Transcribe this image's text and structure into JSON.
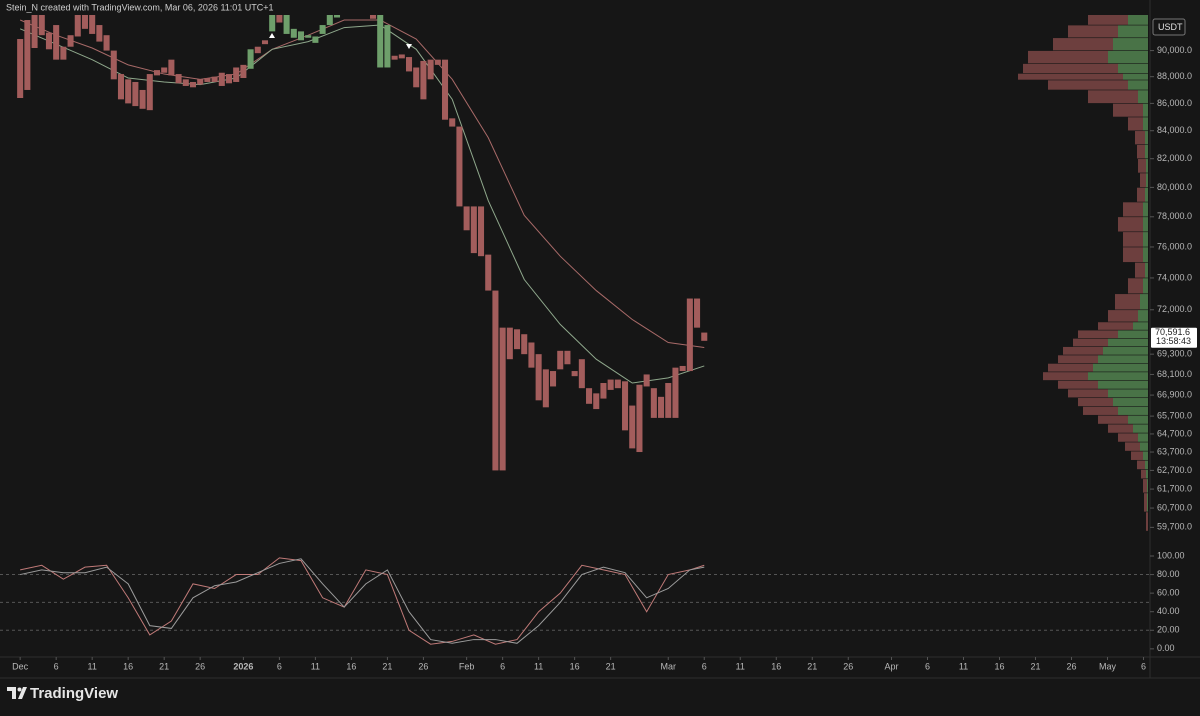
{
  "header": {
    "credit": "Stein_N created with TradingView.com, Mar 06, 2026 11:01 UTC+1",
    "brand": "TradingView"
  },
  "chart_data": [
    {
      "type": "candlestick",
      "currency": "USDT",
      "log_scale": true,
      "xlim": [
        -2.8,
        156.9
      ],
      "ylim": [
        58800,
        92800
      ],
      "xticks": [
        {
          "value": 0,
          "label": "Dec"
        },
        {
          "value": 5,
          "label": "6"
        },
        {
          "value": 10,
          "label": "11"
        },
        {
          "value": 15,
          "label": "16"
        },
        {
          "value": 20,
          "label": "21"
        },
        {
          "value": 25,
          "label": "26"
        },
        {
          "value": 31,
          "label": "2026"
        },
        {
          "value": 36,
          "label": "6"
        },
        {
          "value": 41,
          "label": "11"
        },
        {
          "value": 46,
          "label": "16"
        },
        {
          "value": 51,
          "label": "21"
        },
        {
          "value": 56,
          "label": "26"
        },
        {
          "value": 62,
          "label": "Feb"
        },
        {
          "value": 67,
          "label": "6"
        },
        {
          "value": 72,
          "label": "11"
        },
        {
          "value": 77,
          "label": "16"
        },
        {
          "value": 82,
          "label": "21"
        },
        {
          "value": 90,
          "label": "Mar"
        },
        {
          "value": 95,
          "label": "6"
        },
        {
          "value": 100,
          "label": "11"
        },
        {
          "value": 105,
          "label": "16"
        },
        {
          "value": 110,
          "label": "21"
        },
        {
          "value": 115,
          "label": "26"
        },
        {
          "value": 121,
          "label": "Apr"
        },
        {
          "value": 126,
          "label": "6"
        },
        {
          "value": 131,
          "label": "11"
        },
        {
          "value": 136,
          "label": "16"
        },
        {
          "value": 141,
          "label": "21"
        },
        {
          "value": 146,
          "label": "26"
        },
        {
          "value": 151,
          "label": "May"
        },
        {
          "value": 156,
          "label": "6"
        }
      ],
      "yticks": [
        {
          "value": 90000,
          "label": "90,000.0"
        },
        {
          "value": 88000,
          "label": "88,000.0"
        },
        {
          "value": 86000,
          "label": "86,000.0"
        },
        {
          "value": 84000,
          "label": "84,000.0"
        },
        {
          "value": 82000,
          "label": "82,000.0"
        },
        {
          "value": 80000,
          "label": "80,000.0"
        },
        {
          "value": 78000,
          "label": "78,000.0"
        },
        {
          "value": 76000,
          "label": "76,000.0"
        },
        {
          "value": 74000,
          "label": "74,000.0"
        },
        {
          "value": 72000,
          "label": "72,000.0"
        },
        {
          "value": 69300,
          "label": "69,300.0"
        },
        {
          "value": 68100,
          "label": "68,100.0"
        },
        {
          "value": 66900,
          "label": "66,900.0"
        },
        {
          "value": 65700,
          "label": "65,700.0"
        },
        {
          "value": 64700,
          "label": "64,700.0"
        },
        {
          "value": 63700,
          "label": "63,700.0"
        },
        {
          "value": 62700,
          "label": "62,700.0"
        },
        {
          "value": 61700,
          "label": "61,700.0"
        },
        {
          "value": 60700,
          "label": "60,700.0"
        },
        {
          "value": 59700,
          "label": "59,700.0"
        }
      ],
      "x": [
        0,
        1,
        2,
        3,
        4,
        5,
        6,
        7,
        8,
        9,
        10,
        11,
        12,
        13,
        14,
        15,
        16,
        17,
        18,
        19,
        20,
        21,
        22,
        23,
        24,
        25,
        26,
        27,
        28,
        29,
        30,
        31,
        32,
        33,
        34,
        35,
        36,
        37,
        38,
        39,
        40,
        41,
        42,
        43,
        44,
        45,
        46,
        47,
        48,
        49,
        50,
        51,
        52,
        53,
        54,
        55,
        56,
        57,
        58,
        59,
        60,
        61,
        62,
        63,
        64,
        65,
        66,
        67,
        68,
        69,
        70,
        71,
        72,
        73,
        74,
        75,
        76,
        77,
        78,
        79,
        80,
        81,
        82,
        83,
        84,
        85,
        86,
        87,
        88,
        89,
        90,
        91,
        92,
        93,
        94,
        95
      ],
      "open": [
        90900,
        92400,
        92800,
        92800,
        91400,
        92000,
        90300,
        91200,
        92800,
        92800,
        92800,
        92000,
        91200,
        90000,
        88200,
        87800,
        87600,
        87000,
        88200,
        88500,
        88700,
        89300,
        88200,
        87800,
        87600,
        87800,
        87900,
        88000,
        88300,
        88200,
        88700,
        88900,
        88600,
        90300,
        90800,
        91500,
        92800,
        91300,
        91000,
        90800,
        91000,
        90600,
        91300,
        92000,
        92600,
        null,
        null,
        null,
        null,
        93200,
        88700,
        88700,
        89600,
        89700,
        89500,
        88700,
        89200,
        89300,
        89300,
        89300,
        84900,
        84300,
        78700,
        78700,
        78700,
        75500,
        73200,
        70900,
        70900,
        70800,
        70500,
        70000,
        69300,
        68400,
        68300,
        69500,
        69500,
        68300,
        69000,
        67300,
        67000,
        67600,
        67800,
        67800,
        67700,
        66300,
        67500,
        68100,
        67300,
        66800,
        67600,
        68500,
        68600,
        72700,
        72700,
        70600
      ],
      "close": [
        86400,
        87000,
        90200,
        91200,
        90100,
        89300,
        89300,
        90300,
        91100,
        91700,
        91300,
        90700,
        90000,
        87800,
        86300,
        86000,
        85800,
        85600,
        85500,
        88100,
        88300,
        88100,
        87500,
        87300,
        87200,
        87400,
        87600,
        87600,
        87300,
        87500,
        87600,
        87900,
        90100,
        89800,
        90500,
        92800,
        92200,
        92800,
        91700,
        91500,
        91200,
        91100,
        92000,
        92800,
        92800,
        null,
        null,
        null,
        null,
        92500,
        92800,
        92000,
        89300,
        89400,
        88400,
        87200,
        86300,
        87800,
        88900,
        84800,
        84300,
        78700,
        77100,
        75600,
        75400,
        73200,
        62700,
        62700,
        69000,
        69600,
        69300,
        68500,
        66600,
        66200,
        67400,
        68400,
        68700,
        68000,
        67300,
        66400,
        66100,
        66700,
        67200,
        67300,
        64900,
        63900,
        63700,
        67400,
        65600,
        65600,
        65600,
        65600,
        68300,
        68300,
        70900,
        70100
      ],
      "up_color": "#6e9f6b",
      "down_color": "#a35d5c",
      "lines": [
        {
          "color": "#a86a68",
          "x": [
            0,
            5,
            10,
            15,
            20,
            25,
            30,
            35,
            40,
            45,
            50,
            55,
            60,
            65,
            70,
            75,
            80,
            85,
            90,
            95
          ],
          "values": [
            92400,
            91200,
            90200,
            88900,
            88200,
            87800,
            88200,
            90100,
            91200,
            92400,
            92400,
            90900,
            87800,
            83500,
            78100,
            75400,
            73200,
            71400,
            70000,
            69700
          ]
        },
        {
          "color": "#8fa88c",
          "x": [
            0,
            5,
            10,
            15,
            20,
            25,
            30,
            35,
            40,
            45,
            50,
            55,
            60,
            65,
            70,
            75,
            80,
            85,
            90,
            95
          ],
          "values": [
            91700,
            90500,
            89300,
            87900,
            87600,
            87400,
            87900,
            90100,
            90700,
            91800,
            92000,
            90100,
            86300,
            79100,
            73900,
            71100,
            69000,
            67600,
            67900,
            68600
          ]
        }
      ],
      "last_price": {
        "value": 70591.6,
        "label": "70,591.6"
      },
      "countdown": "13:58:43",
      "volume_profile": {
        "up_color": "#4f7d4c",
        "down_color": "#774443",
        "prices": [
          92500,
          91500,
          90500,
          89500,
          88500,
          88000,
          87500,
          86500,
          85500,
          84500,
          83500,
          82500,
          81500,
          80500,
          79500,
          78500,
          77500,
          76500,
          75500,
          74500,
          73500,
          72500,
          71500,
          71000,
          70500,
          70000,
          69500,
          69000,
          68500,
          68000,
          67500,
          67000,
          66500,
          66000,
          65500,
          65000,
          64500,
          64000,
          63500,
          63000,
          62500,
          62000,
          61000,
          60000
        ],
        "up": [
          20,
          30,
          35,
          40,
          30,
          25,
          20,
          10,
          5,
          5,
          3,
          3,
          2,
          2,
          3,
          5,
          5,
          5,
          5,
          3,
          5,
          8,
          10,
          15,
          30,
          40,
          45,
          50,
          55,
          60,
          50,
          40,
          35,
          30,
          20,
          15,
          10,
          8,
          5,
          3,
          2,
          1,
          1,
          0
        ],
        "down": [
          40,
          50,
          60,
          80,
          95,
          105,
          80,
          50,
          30,
          15,
          10,
          8,
          8,
          6,
          8,
          20,
          25,
          20,
          20,
          10,
          15,
          25,
          30,
          35,
          40,
          35,
          40,
          40,
          45,
          45,
          40,
          40,
          35,
          35,
          30,
          25,
          20,
          15,
          12,
          8,
          5,
          4,
          3,
          2
        ]
      }
    },
    {
      "type": "line",
      "xlim": [
        -2.8,
        156.9
      ],
      "ylim": [
        -12,
        108.6
      ],
      "yticks": [
        {
          "value": 100,
          "label": "100.00"
        },
        {
          "value": 80,
          "label": "80.00"
        },
        {
          "value": 60,
          "label": "60.00"
        },
        {
          "value": 40,
          "label": "40.00"
        },
        {
          "value": 20,
          "label": "20.00"
        },
        {
          "value": 0,
          "label": "0.00"
        }
      ],
      "levels": [
        80,
        50,
        20
      ],
      "x": [
        0,
        3,
        6,
        9,
        12,
        15,
        18,
        21,
        24,
        27,
        30,
        33,
        36,
        39,
        42,
        45,
        48,
        51,
        54,
        57,
        60,
        63,
        66,
        69,
        72,
        75,
        78,
        81,
        84,
        87,
        90,
        93,
        95
      ],
      "series": [
        {
          "color": "#c07a78",
          "values": [
            85,
            90,
            75,
            88,
            90,
            55,
            15,
            30,
            70,
            65,
            80,
            80,
            98,
            95,
            55,
            45,
            85,
            80,
            20,
            5,
            8,
            15,
            5,
            10,
            40,
            60,
            90,
            85,
            80,
            40,
            80,
            85,
            90
          ]
        },
        {
          "color": "#9c9c9c",
          "values": [
            80,
            85,
            82,
            82,
            88,
            70,
            25,
            22,
            55,
            68,
            72,
            82,
            92,
            97,
            70,
            45,
            70,
            85,
            40,
            10,
            6,
            10,
            10,
            6,
            25,
            50,
            80,
            88,
            82,
            55,
            65,
            85,
            88
          ]
        }
      ]
    }
  ]
}
